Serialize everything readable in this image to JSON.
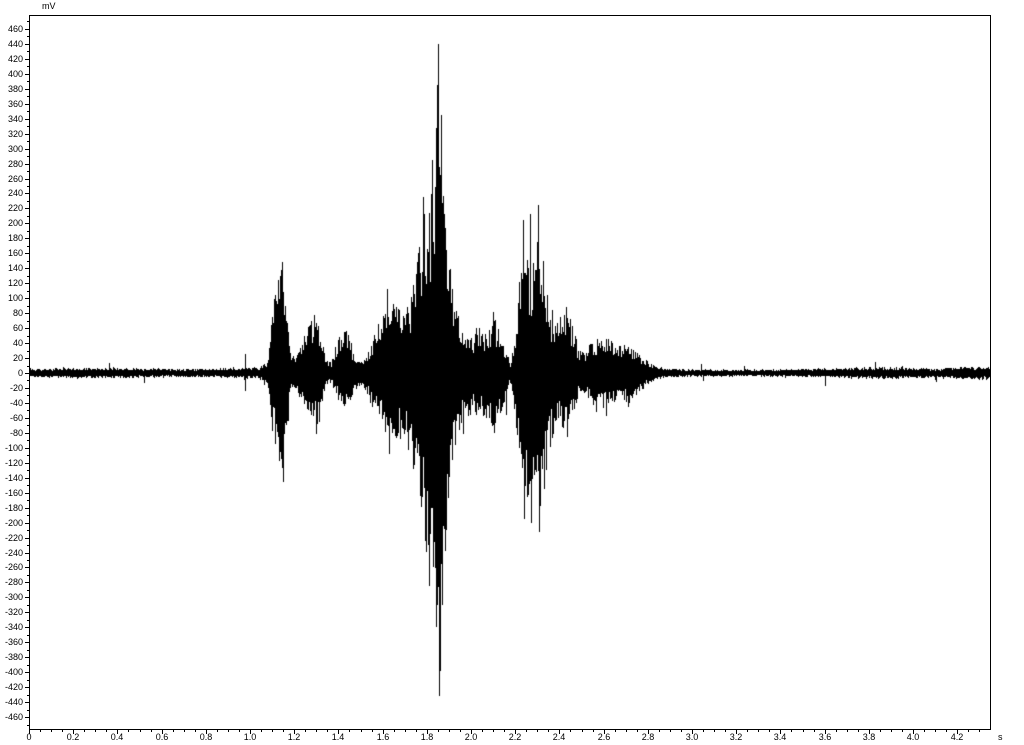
{
  "chart_data": {
    "type": "line",
    "title": "",
    "ylabel": "mV",
    "xlabel": "s",
    "background": "#ffffff",
    "waveform_color": "#000000",
    "grid": false,
    "legend": false,
    "x_axis": {
      "min": 0,
      "max": 4.34,
      "major_tick_step": 0.2,
      "minor_tick_step": 0.05,
      "tick_labels": [
        "0",
        "0.2",
        "0.4",
        "0.6",
        "0.8",
        "1.0",
        "1.2",
        "1.4",
        "1.6",
        "1.8",
        "2.0",
        "2.2",
        "2.4",
        "2.6",
        "2.8",
        "3.0",
        "3.2",
        "3.4",
        "3.6",
        "3.8",
        "4.0",
        "4.2"
      ]
    },
    "y_axis": {
      "min": -476,
      "max": 479,
      "major_tick_step": 20,
      "minor_tick_step": 10,
      "tick_labels": [
        "460",
        "440",
        "420",
        "400",
        "380",
        "360",
        "340",
        "320",
        "300",
        "280",
        "260",
        "240",
        "220",
        "200",
        "180",
        "160",
        "140",
        "120",
        "100",
        "80",
        "60",
        "40",
        "20",
        "0",
        "-20",
        "-40",
        "-60",
        "-80",
        "-100",
        "-120",
        "-140",
        "-160",
        "-180",
        "-200",
        "-220",
        "-240",
        "-260",
        "-280",
        "-300",
        "-320",
        "-340",
        "-360",
        "-380",
        "-400",
        "-420",
        "-440",
        "-460"
      ]
    },
    "waveform": {
      "description": "speech-like min/max audio waveform; quiet noise floor with burst activity between 1.0 s and 2.9 s; extreme peaks +440/-430 mV near t=1.85 s and +225/-212 mV near t=2.30 s",
      "noise_floor_mv": 6,
      "min_bar_mv": 2.5,
      "envelope_mv": [
        [
          0.0,
          6,
          6
        ],
        [
          0.2,
          7,
          7
        ],
        [
          0.4,
          7,
          7
        ],
        [
          0.6,
          6,
          6
        ],
        [
          0.8,
          6,
          6
        ],
        [
          0.95,
          7,
          7
        ],
        [
          0.972,
          8,
          8
        ],
        [
          0.977,
          25,
          23
        ],
        [
          0.982,
          8,
          8
        ],
        [
          1.04,
          8,
          8
        ],
        [
          1.06,
          14,
          13
        ],
        [
          1.075,
          12,
          12
        ],
        [
          1.085,
          40,
          35
        ],
        [
          1.1,
          90,
          80
        ],
        [
          1.12,
          120,
          105
        ],
        [
          1.145,
          145,
          128
        ],
        [
          1.165,
          80,
          90
        ],
        [
          1.185,
          22,
          20
        ],
        [
          1.21,
          30,
          26
        ],
        [
          1.24,
          50,
          45
        ],
        [
          1.27,
          70,
          60
        ],
        [
          1.295,
          82,
          72
        ],
        [
          1.315,
          60,
          65
        ],
        [
          1.34,
          20,
          18
        ],
        [
          1.365,
          14,
          13
        ],
        [
          1.39,
          40,
          32
        ],
        [
          1.42,
          62,
          52
        ],
        [
          1.445,
          55,
          56
        ],
        [
          1.47,
          25,
          28
        ],
        [
          1.5,
          16,
          16
        ],
        [
          1.53,
          30,
          30
        ],
        [
          1.56,
          50,
          55
        ],
        [
          1.59,
          75,
          70
        ],
        [
          1.62,
          108,
          90
        ],
        [
          1.645,
          100,
          105
        ],
        [
          1.67,
          85,
          90
        ],
        [
          1.7,
          80,
          88
        ],
        [
          1.73,
          110,
          120
        ],
        [
          1.76,
          170,
          160
        ],
        [
          1.785,
          230,
          210
        ],
        [
          1.805,
          200,
          270
        ],
        [
          1.825,
          280,
          240
        ],
        [
          1.845,
          380,
          330
        ],
        [
          1.855,
          440,
          430
        ],
        [
          1.87,
          310,
          340
        ],
        [
          1.89,
          190,
          210
        ],
        [
          1.91,
          130,
          140
        ],
        [
          1.935,
          85,
          95
        ],
        [
          1.96,
          60,
          70
        ],
        [
          2.0,
          50,
          55
        ],
        [
          2.04,
          70,
          60
        ],
        [
          2.07,
          50,
          62
        ],
        [
          2.1,
          80,
          78
        ],
        [
          2.13,
          55,
          60
        ],
        [
          2.155,
          38,
          40
        ],
        [
          2.175,
          13,
          13
        ],
        [
          2.195,
          45,
          50
        ],
        [
          2.215,
          120,
          110
        ],
        [
          2.235,
          200,
          180
        ],
        [
          2.255,
          160,
          190
        ],
        [
          2.275,
          150,
          160
        ],
        [
          2.295,
          220,
          200
        ],
        [
          2.315,
          185,
          210
        ],
        [
          2.335,
          130,
          150
        ],
        [
          2.36,
          80,
          95
        ],
        [
          2.385,
          65,
          70
        ],
        [
          2.41,
          80,
          72
        ],
        [
          2.435,
          85,
          80
        ],
        [
          2.46,
          62,
          58
        ],
        [
          2.485,
          35,
          32
        ],
        [
          2.51,
          28,
          26
        ],
        [
          2.545,
          42,
          45
        ],
        [
          2.58,
          48,
          50
        ],
        [
          2.62,
          46,
          48
        ],
        [
          2.66,
          43,
          45
        ],
        [
          2.7,
          41,
          42
        ],
        [
          2.74,
          32,
          34
        ],
        [
          2.78,
          20,
          22
        ],
        [
          2.82,
          12,
          12
        ],
        [
          2.87,
          7,
          7
        ],
        [
          3.0,
          5,
          5
        ],
        [
          3.2,
          5,
          5
        ],
        [
          3.4,
          5,
          5
        ],
        [
          3.55,
          6,
          6
        ],
        [
          3.7,
          7,
          7
        ],
        [
          3.8,
          8,
          8
        ],
        [
          3.9,
          8,
          8
        ],
        [
          4.0,
          7,
          7
        ],
        [
          4.1,
          6,
          6
        ],
        [
          4.2,
          8,
          8
        ],
        [
          4.28,
          9,
          9
        ],
        [
          4.34,
          9,
          9
        ]
      ],
      "spikes_mv": [
        [
          0.977,
          25
        ],
        [
          0.978,
          -24
        ],
        [
          1.125,
          125
        ],
        [
          1.13,
          -118
        ],
        [
          1.145,
          148
        ],
        [
          1.148,
          -132
        ],
        [
          1.62,
          112
        ],
        [
          1.63,
          -108
        ],
        [
          1.785,
          235
        ],
        [
          1.79,
          -225
        ],
        [
          1.825,
          285
        ],
        [
          1.83,
          -260
        ],
        [
          1.84,
          -340
        ],
        [
          1.845,
          385
        ],
        [
          1.852,
          440
        ],
        [
          1.856,
          -432
        ],
        [
          1.862,
          345
        ],
        [
          1.868,
          -310
        ],
        [
          2.1,
          82
        ],
        [
          2.105,
          -80
        ],
        [
          2.235,
          205
        ],
        [
          2.24,
          -195
        ],
        [
          2.267,
          212
        ],
        [
          2.27,
          -200
        ],
        [
          2.303,
          225
        ],
        [
          2.308,
          -212
        ],
        [
          2.43,
          88
        ],
        [
          2.435,
          -86
        ],
        [
          0.36,
          14
        ],
        [
          0.52,
          -13
        ],
        [
          3.04,
          12
        ],
        [
          3.05,
          -11
        ],
        [
          3.6,
          -18
        ]
      ]
    }
  }
}
